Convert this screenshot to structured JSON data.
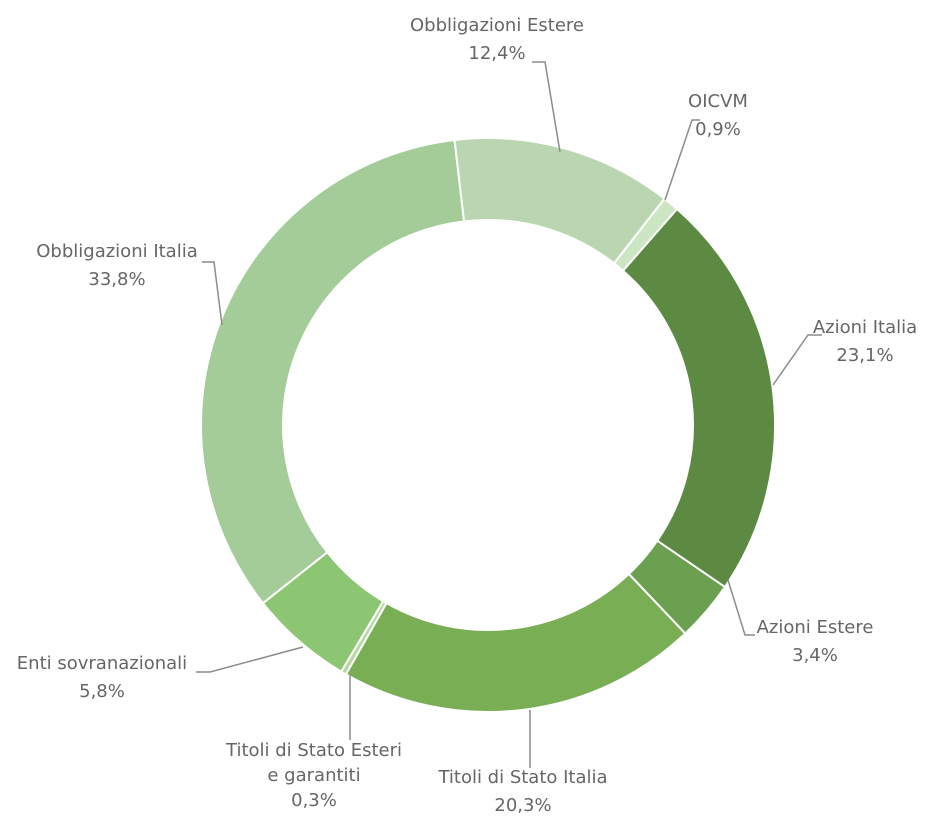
{
  "chart_data": {
    "type": "donut",
    "categories": [
      "Obbligazioni Estere",
      "OICVM",
      "Azioni Italia",
      "Azioni Estere",
      "Titoli di Stato Italia",
      "Titoli di Stato Esteri e garantiti",
      "Enti sovranazionali",
      "Obbligazioni Italia"
    ],
    "values": [
      12.4,
      0.9,
      23.1,
      3.4,
      20.3,
      0.3,
      5.8,
      33.8
    ],
    "value_labels": [
      "12,4%",
      "0,9%",
      "23,1%",
      "3,4%",
      "20,3%",
      "0,3%",
      "5,8%",
      "33,8%"
    ],
    "colors": [
      "#bad6b0",
      "#cce5c2",
      "#5c8a42",
      "#6aa050",
      "#7aae55",
      "#b5d8a0",
      "#8dc672",
      "#a3cc99"
    ]
  }
}
